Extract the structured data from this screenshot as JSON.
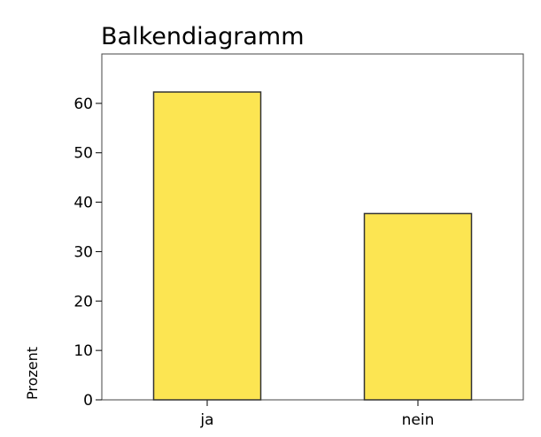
{
  "chart_data": {
    "type": "bar",
    "title": "Balkendiagramm",
    "xlabel": "",
    "ylabel": "Prozent",
    "categories": [
      "ja",
      "nein"
    ],
    "values": [
      62.3,
      37.7
    ],
    "ylim": [
      0,
      70
    ],
    "yticks": [
      0,
      10,
      20,
      30,
      40,
      50,
      60
    ],
    "bar_color": "#fce552",
    "bar_stroke": "#333333",
    "grid": false,
    "legend": "none"
  }
}
